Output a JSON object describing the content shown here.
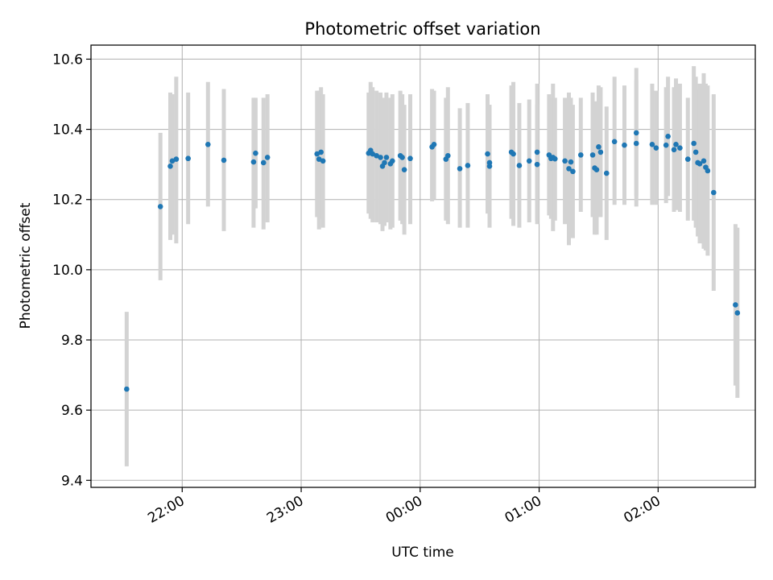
{
  "chart_data": {
    "type": "scatter",
    "title": "Photometric offset variation",
    "xlabel": "UTC time",
    "ylabel": "Photometric offset",
    "x_is_time": true,
    "xlim": [
      "21:14",
      "02:49"
    ],
    "ylim": [
      9.38,
      10.64
    ],
    "xticks": [
      {
        "value": "22:00",
        "label": "22:00"
      },
      {
        "value": "23:00",
        "label": "23:00"
      },
      {
        "value": "00:00",
        "label": "00:00"
      },
      {
        "value": "01:00",
        "label": "01:00"
      },
      {
        "value": "02:00",
        "label": "02:00"
      }
    ],
    "yticks": [
      9.4,
      9.6,
      9.8,
      10.0,
      10.2,
      10.4,
      10.6
    ],
    "ytick_labels": [
      "9.4",
      "9.6",
      "9.8",
      "10.0",
      "10.2",
      "10.4",
      "10.6"
    ],
    "grid": true,
    "point_color": "#1f77b4",
    "errorbar_color": "#d3d3d3",
    "points": [
      {
        "x": "21:32",
        "y": 9.66,
        "lo": 9.44,
        "hi": 9.88
      },
      {
        "x": "21:49",
        "y": 10.18,
        "lo": 9.97,
        "hi": 10.39
      },
      {
        "x": "21:54",
        "y": 10.295,
        "lo": 10.085,
        "hi": 10.505
      },
      {
        "x": "21:55",
        "y": 10.31,
        "lo": 10.1,
        "hi": 10.5
      },
      {
        "x": "21:57",
        "y": 10.315,
        "lo": 10.075,
        "hi": 10.55
      },
      {
        "x": "22:03",
        "y": 10.317,
        "lo": 10.13,
        "hi": 10.505
      },
      {
        "x": "22:13",
        "y": 10.357,
        "lo": 10.18,
        "hi": 10.535
      },
      {
        "x": "22:21",
        "y": 10.312,
        "lo": 10.11,
        "hi": 10.515
      },
      {
        "x": "22:36",
        "y": 10.307,
        "lo": 10.12,
        "hi": 10.49
      },
      {
        "x": "22:37",
        "y": 10.332,
        "lo": 10.175,
        "hi": 10.49
      },
      {
        "x": "22:41",
        "y": 10.305,
        "lo": 10.115,
        "hi": 10.49
      },
      {
        "x": "22:43",
        "y": 10.32,
        "lo": 10.135,
        "hi": 10.5
      },
      {
        "x": "23:08",
        "y": 10.33,
        "lo": 10.15,
        "hi": 10.51
      },
      {
        "x": "23:09",
        "y": 10.315,
        "lo": 10.115,
        "hi": 10.51
      },
      {
        "x": "23:10",
        "y": 10.335,
        "lo": 10.145,
        "hi": 10.52
      },
      {
        "x": "23:11",
        "y": 10.31,
        "lo": 10.12,
        "hi": 10.5
      },
      {
        "x": "23:34",
        "y": 10.332,
        "lo": 10.16,
        "hi": 10.505
      },
      {
        "x": "23:35",
        "y": 10.34,
        "lo": 10.145,
        "hi": 10.535
      },
      {
        "x": "23:36",
        "y": 10.33,
        "lo": 10.135,
        "hi": 10.52
      },
      {
        "x": "23:38",
        "y": 10.325,
        "lo": 10.135,
        "hi": 10.51
      },
      {
        "x": "23:40",
        "y": 10.32,
        "lo": 10.13,
        "hi": 10.505
      },
      {
        "x": "23:41",
        "y": 10.295,
        "lo": 10.11,
        "hi": 10.485
      },
      {
        "x": "23:42",
        "y": 10.305,
        "lo": 10.125,
        "hi": 10.49
      },
      {
        "x": "23:43",
        "y": 10.32,
        "lo": 10.135,
        "hi": 10.505
      },
      {
        "x": "23:45",
        "y": 10.302,
        "lo": 10.115,
        "hi": 10.49
      },
      {
        "x": "23:46",
        "y": 10.31,
        "lo": 10.12,
        "hi": 10.5
      },
      {
        "x": "23:50",
        "y": 10.325,
        "lo": 10.14,
        "hi": 10.51
      },
      {
        "x": "23:51",
        "y": 10.32,
        "lo": 10.13,
        "hi": 10.5
      },
      {
        "x": "23:52",
        "y": 10.285,
        "lo": 10.1,
        "hi": 10.47
      },
      {
        "x": "23:55",
        "y": 10.317,
        "lo": 10.13,
        "hi": 10.5
      },
      {
        "x": "00:06",
        "y": 10.35,
        "lo": 10.195,
        "hi": 10.515
      },
      {
        "x": "00:07",
        "y": 10.357,
        "lo": 10.2,
        "hi": 10.51
      },
      {
        "x": "00:13",
        "y": 10.315,
        "lo": 10.14,
        "hi": 10.49
      },
      {
        "x": "00:14",
        "y": 10.325,
        "lo": 10.13,
        "hi": 10.52
      },
      {
        "x": "00:20",
        "y": 10.288,
        "lo": 10.12,
        "hi": 10.46
      },
      {
        "x": "00:24",
        "y": 10.297,
        "lo": 10.12,
        "hi": 10.475
      },
      {
        "x": "00:34",
        "y": 10.33,
        "lo": 10.16,
        "hi": 10.5
      },
      {
        "x": "00:35",
        "y": 10.305,
        "lo": 10.14,
        "hi": 10.47
      },
      {
        "x": "00:35",
        "y": 10.295,
        "lo": 10.12,
        "hi": 10.47
      },
      {
        "x": "00:46",
        "y": 10.335,
        "lo": 10.145,
        "hi": 10.525
      },
      {
        "x": "00:47",
        "y": 10.33,
        "lo": 10.125,
        "hi": 10.535
      },
      {
        "x": "00:50",
        "y": 10.297,
        "lo": 10.12,
        "hi": 10.475
      },
      {
        "x": "00:55",
        "y": 10.31,
        "lo": 10.135,
        "hi": 10.485
      },
      {
        "x": "00:59",
        "y": 10.3,
        "lo": 10.13,
        "hi": 10.47
      },
      {
        "x": "00:59",
        "y": 10.335,
        "lo": 10.14,
        "hi": 10.53
      },
      {
        "x": "01:05",
        "y": 10.327,
        "lo": 10.155,
        "hi": 10.5
      },
      {
        "x": "01:06",
        "y": 10.317,
        "lo": 10.145,
        "hi": 10.49
      },
      {
        "x": "01:07",
        "y": 10.32,
        "lo": 10.11,
        "hi": 10.53
      },
      {
        "x": "01:08",
        "y": 10.316,
        "lo": 10.14,
        "hi": 10.49
      },
      {
        "x": "01:13",
        "y": 10.31,
        "lo": 10.13,
        "hi": 10.49
      },
      {
        "x": "01:15",
        "y": 10.288,
        "lo": 10.07,
        "hi": 10.505
      },
      {
        "x": "01:16",
        "y": 10.307,
        "lo": 10.125,
        "hi": 10.49
      },
      {
        "x": "01:17",
        "y": 10.28,
        "lo": 10.09,
        "hi": 10.47
      },
      {
        "x": "01:21",
        "y": 10.327,
        "lo": 10.165,
        "hi": 10.49
      },
      {
        "x": "01:27",
        "y": 10.327,
        "lo": 10.15,
        "hi": 10.505
      },
      {
        "x": "01:28",
        "y": 10.29,
        "lo": 10.1,
        "hi": 10.48
      },
      {
        "x": "01:29",
        "y": 10.285,
        "lo": 10.1,
        "hi": 10.47
      },
      {
        "x": "01:30",
        "y": 10.35,
        "lo": 10.175,
        "hi": 10.525
      },
      {
        "x": "01:31",
        "y": 10.335,
        "lo": 10.15,
        "hi": 10.52
      },
      {
        "x": "01:34",
        "y": 10.275,
        "lo": 10.085,
        "hi": 10.465
      },
      {
        "x": "01:38",
        "y": 10.365,
        "lo": 10.185,
        "hi": 10.55
      },
      {
        "x": "01:43",
        "y": 10.355,
        "lo": 10.185,
        "hi": 10.525
      },
      {
        "x": "01:49",
        "y": 10.36,
        "lo": 10.18,
        "hi": 10.54
      },
      {
        "x": "01:49",
        "y": 10.39,
        "lo": 10.21,
        "hi": 10.575
      },
      {
        "x": "01:57",
        "y": 10.357,
        "lo": 10.185,
        "hi": 10.53
      },
      {
        "x": "01:59",
        "y": 10.347,
        "lo": 10.185,
        "hi": 10.51
      },
      {
        "x": "02:04",
        "y": 10.355,
        "lo": 10.19,
        "hi": 10.52
      },
      {
        "x": "02:05",
        "y": 10.38,
        "lo": 10.21,
        "hi": 10.55
      },
      {
        "x": "02:08",
        "y": 10.342,
        "lo": 10.165,
        "hi": 10.52
      },
      {
        "x": "02:09",
        "y": 10.357,
        "lo": 10.17,
        "hi": 10.545
      },
      {
        "x": "02:11",
        "y": 10.347,
        "lo": 10.165,
        "hi": 10.53
      },
      {
        "x": "02:15",
        "y": 10.315,
        "lo": 10.14,
        "hi": 10.49
      },
      {
        "x": "02:18",
        "y": 10.36,
        "lo": 10.14,
        "hi": 10.58
      },
      {
        "x": "02:19",
        "y": 10.335,
        "lo": 10.12,
        "hi": 10.55
      },
      {
        "x": "02:20",
        "y": 10.305,
        "lo": 10.095,
        "hi": 10.515
      },
      {
        "x": "02:21",
        "y": 10.302,
        "lo": 10.075,
        "hi": 10.53
      },
      {
        "x": "02:23",
        "y": 10.31,
        "lo": 10.06,
        "hi": 10.56
      },
      {
        "x": "02:24",
        "y": 10.292,
        "lo": 10.055,
        "hi": 10.53
      },
      {
        "x": "02:25",
        "y": 10.282,
        "lo": 10.04,
        "hi": 10.525
      },
      {
        "x": "02:28",
        "y": 10.22,
        "lo": 9.94,
        "hi": 10.5
      },
      {
        "x": "02:39",
        "y": 9.9,
        "lo": 9.67,
        "hi": 10.13
      },
      {
        "x": "02:40",
        "y": 9.877,
        "lo": 9.635,
        "hi": 10.12
      }
    ]
  }
}
